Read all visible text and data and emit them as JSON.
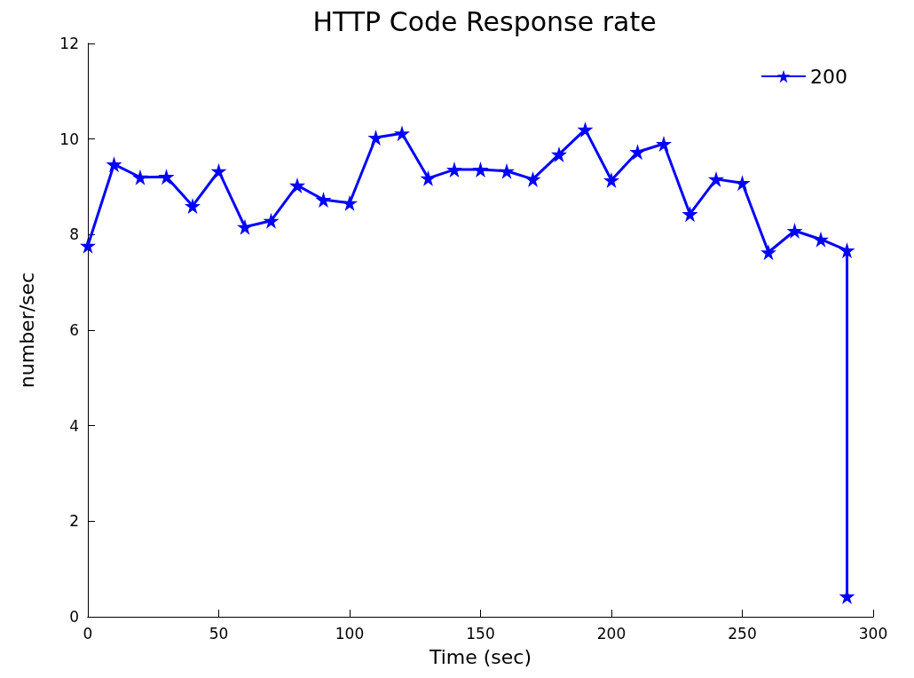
{
  "chart_data": {
    "type": "line",
    "title": "HTTP Code Response rate",
    "xlabel": "Time (sec)",
    "ylabel": "number/sec",
    "x": [
      0,
      10,
      20,
      30,
      40,
      50,
      60,
      70,
      80,
      90,
      100,
      110,
      120,
      130,
      140,
      150,
      160,
      170,
      180,
      190,
      200,
      210,
      220,
      230,
      240,
      250,
      260,
      270,
      280,
      290,
      290
    ],
    "series": [
      {
        "name": "200",
        "color": "#0000ff",
        "values": [
          7.77,
          9.47,
          9.2,
          9.21,
          8.6,
          9.33,
          8.16,
          8.29,
          9.03,
          8.73,
          8.66,
          10.03,
          10.12,
          9.18,
          9.36,
          9.36,
          9.33,
          9.16,
          9.68,
          10.2,
          9.14,
          9.73,
          9.9,
          8.43,
          9.16,
          9.08,
          7.63,
          8.08,
          7.9,
          7.67,
          0.43
        ]
      }
    ],
    "xlim": [
      0,
      300
    ],
    "xticks": [
      0,
      50,
      100,
      150,
      200,
      250,
      300
    ],
    "ylim": [
      0,
      12
    ],
    "yticks": [
      0,
      2,
      4,
      6,
      8,
      10,
      12
    ],
    "grid": false,
    "legend": "top right",
    "marker": "star",
    "line_style": "solid"
  }
}
